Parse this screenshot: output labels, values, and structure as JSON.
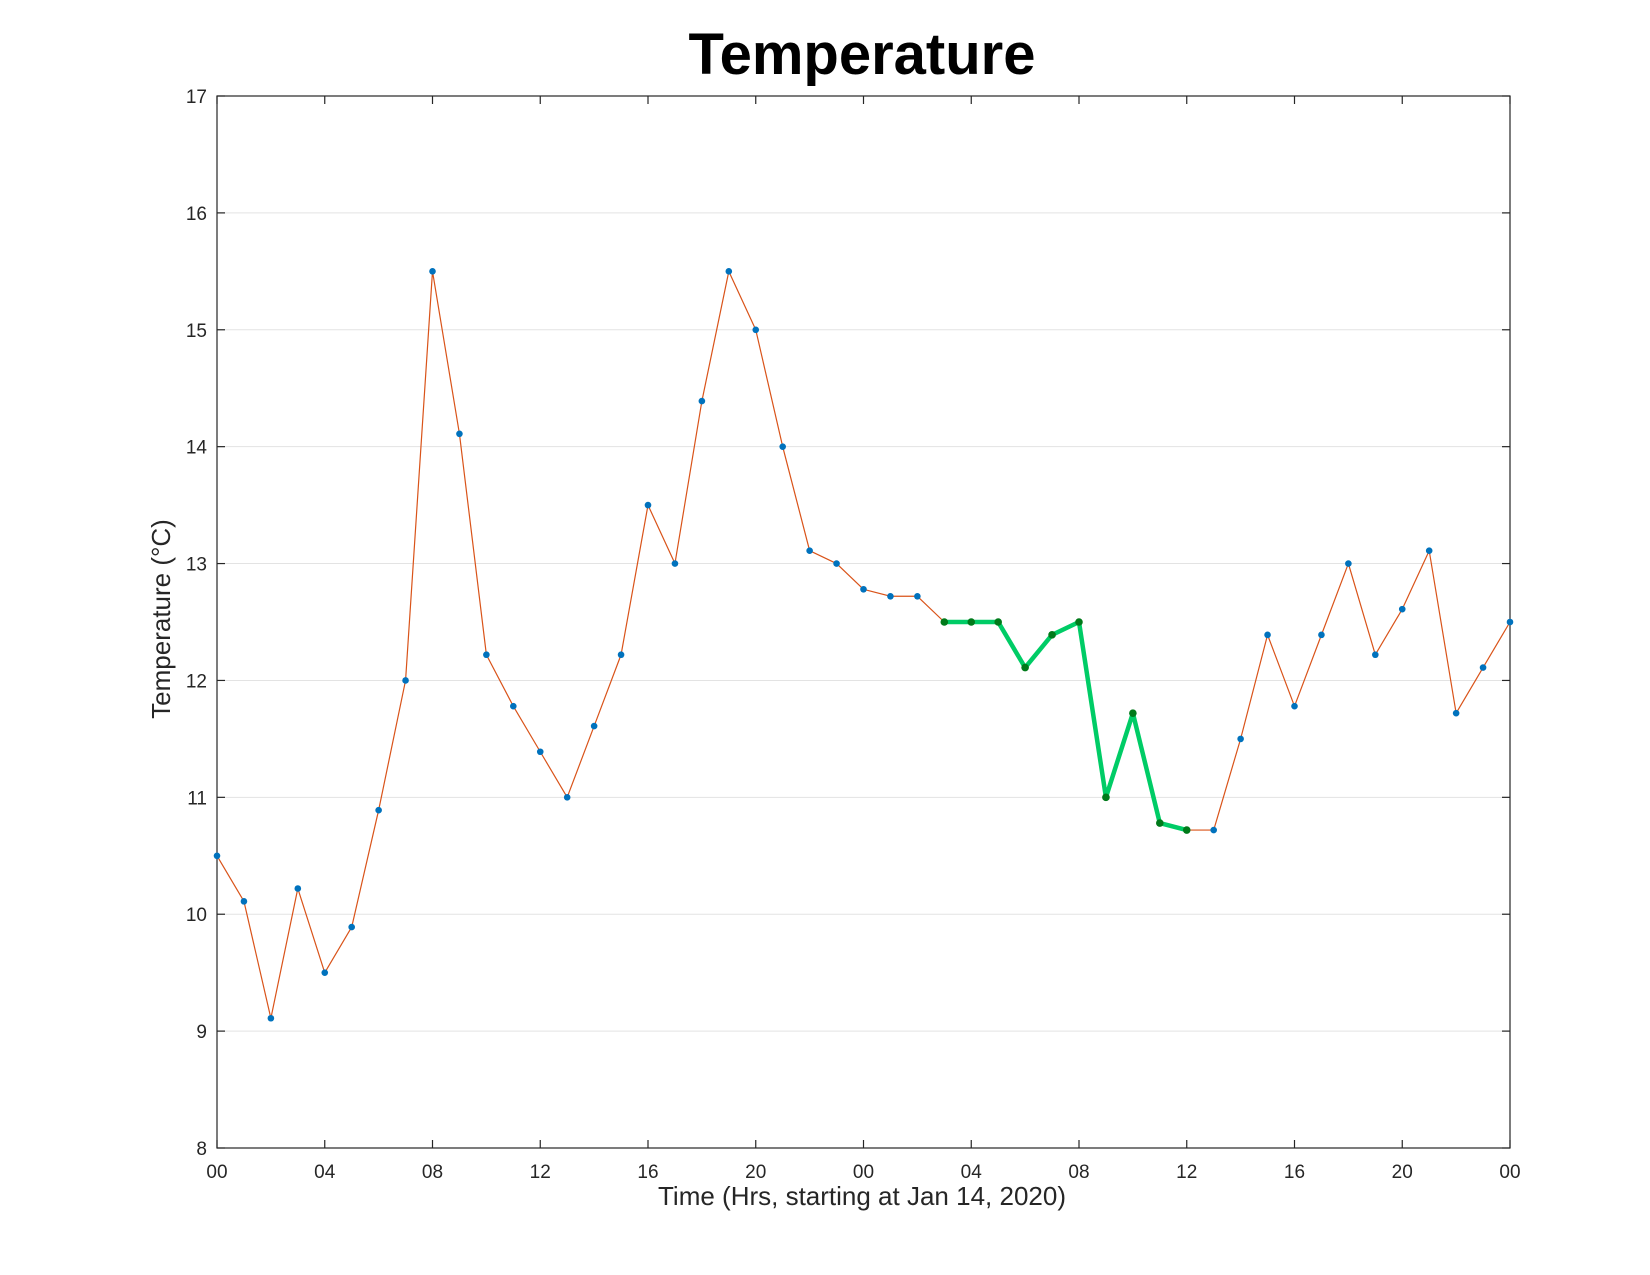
{
  "chart_data": {
    "type": "line",
    "title": "Temperature",
    "xlabel": "Time (Hrs, starting at Jan 14, 2020)",
    "ylabel": "Temperature (°C)",
    "ylim": [
      8,
      17
    ],
    "xlim": [
      0,
      48
    ],
    "x_unit": "hours since Jan 14, 2020 00:00",
    "x_ticks": [
      0,
      4,
      8,
      12,
      16,
      20,
      24,
      28,
      32,
      36,
      40,
      44,
      48
    ],
    "x_tick_labels": [
      "00",
      "04",
      "08",
      "12",
      "16",
      "20",
      "00",
      "04",
      "08",
      "12",
      "16",
      "20",
      "00"
    ],
    "y_ticks": [
      8,
      9,
      10,
      11,
      12,
      13,
      14,
      15,
      16,
      17
    ],
    "y_tick_labels": [
      "8",
      "9",
      "10",
      "11",
      "12",
      "13",
      "14",
      "15",
      "16",
      "17"
    ],
    "grid": "horizontal",
    "series": [
      {
        "role": "main",
        "color": "#D95319",
        "marker_color": "#0072BD",
        "x": [
          0,
          1,
          2,
          3,
          4,
          5,
          6,
          7,
          8,
          9,
          10,
          11,
          12,
          13,
          14,
          15,
          16,
          17,
          18,
          19,
          20,
          21,
          22,
          23,
          24,
          25,
          26,
          27,
          28,
          29,
          30,
          31,
          32,
          33,
          34,
          35,
          36,
          37,
          38,
          39,
          40,
          41,
          42,
          43,
          44,
          45,
          46,
          47,
          48
        ],
        "values": [
          10.5,
          10.11,
          9.11,
          10.22,
          9.5,
          9.89,
          10.89,
          12.0,
          15.5,
          14.11,
          12.22,
          11.78,
          11.39,
          11.0,
          11.61,
          12.22,
          13.5,
          13.0,
          14.39,
          15.5,
          15.0,
          14.0,
          13.11,
          13.0,
          12.78,
          12.72,
          12.72,
          12.5,
          12.5,
          12.5,
          12.11,
          12.39,
          12.5,
          11.0,
          11.72,
          10.78,
          10.72,
          10.72,
          11.5,
          12.39,
          11.78,
          12.39,
          13.0,
          12.22,
          12.61,
          13.11,
          11.72,
          12.11,
          12.5
        ]
      },
      {
        "role": "highlight",
        "color": "#00CC66",
        "marker_color": "#007A1A",
        "x": [
          27,
          28,
          29,
          30,
          31,
          32,
          33,
          34,
          35,
          36
        ],
        "values": [
          12.5,
          12.5,
          12.5,
          12.11,
          12.39,
          12.5,
          11.0,
          11.72,
          10.78,
          10.72
        ]
      }
    ]
  }
}
